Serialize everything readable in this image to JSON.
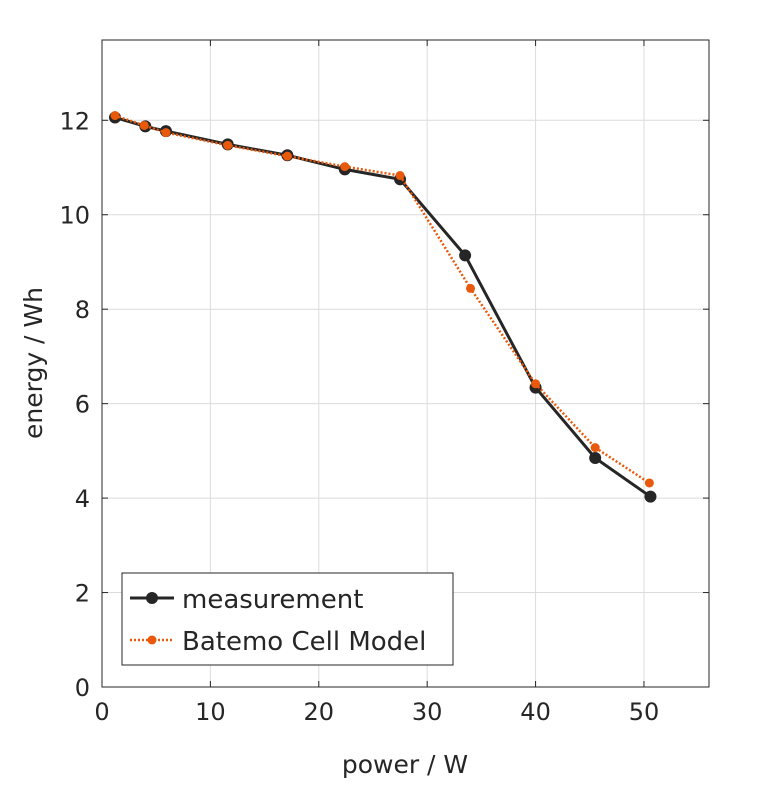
{
  "chart_data": {
    "type": "line",
    "title": "",
    "xlabel": "power / W",
    "ylabel": "energy / Wh",
    "xlim": [
      0,
      56
    ],
    "ylim": [
      0,
      13.7
    ],
    "xticks": [
      0,
      10,
      20,
      30,
      40,
      50
    ],
    "yticks": [
      0,
      2,
      4,
      6,
      8,
      10,
      12
    ],
    "grid": true,
    "legend_position": "bottom-left",
    "series": [
      {
        "name": "measurement",
        "color": "#262626",
        "style": "solid",
        "x": [
          1.2,
          4.0,
          5.9,
          11.6,
          17.1,
          22.4,
          27.5,
          33.5,
          40.0,
          45.5,
          50.6
        ],
        "y": [
          12.06,
          11.87,
          11.77,
          11.49,
          11.26,
          10.96,
          10.75,
          9.14,
          6.34,
          4.85,
          4.03
        ]
      },
      {
        "name": "Batemo Cell Model",
        "color": "#e8590c",
        "style": "dotted",
        "x": [
          1.2,
          3.9,
          5.9,
          11.6,
          17.1,
          22.4,
          27.5,
          34.0,
          40.0,
          45.5,
          50.5
        ],
        "y": [
          12.1,
          11.89,
          11.74,
          11.47,
          11.24,
          11.02,
          10.83,
          8.44,
          6.42,
          5.07,
          4.32
        ]
      }
    ]
  }
}
